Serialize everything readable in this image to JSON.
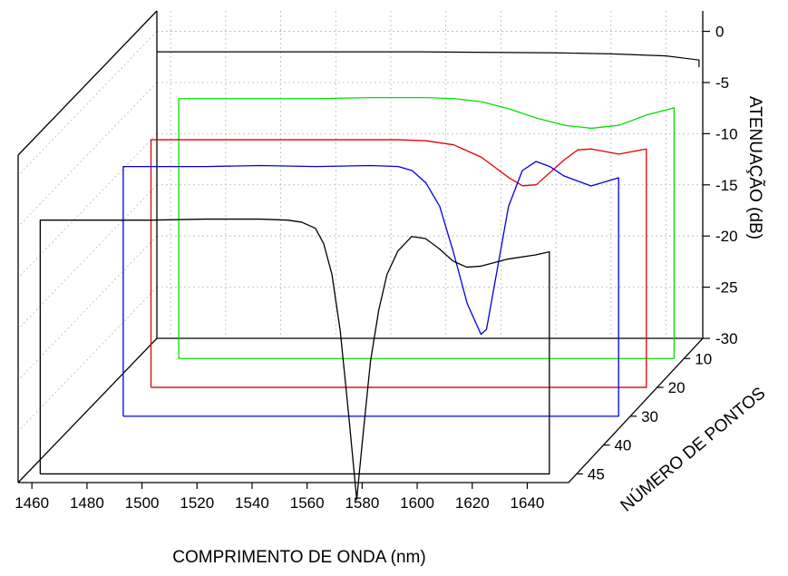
{
  "chart_data": {
    "type": "line",
    "subtype": "3d-waterfall",
    "title": "",
    "xlabel": "COMPRIMENTO DE ONDA (nm)",
    "ylabel": "NÚMERO DE PONTOS",
    "zlabel": "ATENUAÇÃO (dB)",
    "xlim": [
      1455,
      1655
    ],
    "zlim": [
      -30,
      2
    ],
    "x_ticks": [
      "1460",
      "1480",
      "1500",
      "1520",
      "1540",
      "1560",
      "1580",
      "1600",
      "1620",
      "1640"
    ],
    "y_ticks": [
      "10",
      "20",
      "30",
      "40",
      "45"
    ],
    "z_ticks": [
      "0",
      "-5",
      "-10",
      "-15",
      "-20",
      "-25",
      "-30"
    ],
    "grid": true,
    "series": [
      {
        "points": 10,
        "color": "#00e000",
        "x": [
          1470,
          1480,
          1500,
          1520,
          1540,
          1560,
          1570,
          1580,
          1590,
          1600,
          1610,
          1620,
          1630,
          1640,
          1650
        ],
        "y": [
          -4.6,
          -4.6,
          -4.6,
          -4.6,
          -4.5,
          -4.5,
          -4.6,
          -4.9,
          -5.6,
          -6.5,
          -7.2,
          -7.5,
          -7.2,
          -6.2,
          -5.5
        ]
      },
      {
        "points": 20,
        "color": "#e00000",
        "x": [
          1470,
          1480,
          1500,
          1520,
          1540,
          1560,
          1570,
          1580,
          1590,
          1595,
          1600,
          1605,
          1610,
          1620,
          1625,
          1630,
          1640,
          1650
        ],
        "y": [
          -5.8,
          -5.8,
          -5.8,
          -5.8,
          -5.8,
          -5.8,
          -5.9,
          -6.3,
          -7.5,
          -8.5,
          -9.5,
          -10.3,
          -10.2,
          -7.8,
          -6.8,
          -6.7,
          -7.2,
          -6.7
        ]
      },
      {
        "points": 30,
        "color": "#0000e0",
        "x": [
          1470,
          1480,
          1500,
          1520,
          1540,
          1560,
          1570,
          1575,
          1580,
          1585,
          1590,
          1595,
          1600,
          1602,
          1605,
          1610,
          1615,
          1620,
          1625,
          1630,
          1640,
          1650
        ],
        "y": [
          -5.6,
          -5.6,
          -5.6,
          -5.5,
          -5.6,
          -5.5,
          -5.6,
          -6.0,
          -7.2,
          -9.5,
          -14.0,
          -19.0,
          -22.0,
          -21.5,
          -17.0,
          -9.5,
          -6.0,
          -5.1,
          -5.6,
          -6.5,
          -7.5,
          -6.7
        ]
      },
      {
        "points": 45,
        "color": "#000000",
        "x": [
          1460,
          1480,
          1500,
          1520,
          1540,
          1550,
          1555,
          1560,
          1563,
          1566,
          1569,
          1572,
          1575,
          1577,
          1580,
          1583,
          1586,
          1590,
          1595,
          1600,
          1605,
          1610,
          1615,
          1620,
          1630,
          1640,
          1645
        ],
        "y": [
          -5.2,
          -5.2,
          -5.2,
          -5.1,
          -5.1,
          -5.2,
          -5.4,
          -6.0,
          -7.5,
          -10.5,
          -16.0,
          -24.0,
          -32.5,
          -27.0,
          -19.0,
          -14.0,
          -10.5,
          -8.2,
          -6.8,
          -7.0,
          -8.0,
          -9.2,
          -9.8,
          -9.7,
          -9.0,
          -8.6,
          -8.3
        ]
      }
    ],
    "back_trace": {
      "x": [
        1455,
        1500,
        1550,
        1600,
        1620,
        1640,
        1652
      ],
      "y": [
        -2.0,
        -2.0,
        -2.0,
        -2.1,
        -2.2,
        -2.4,
        -2.8
      ]
    }
  }
}
